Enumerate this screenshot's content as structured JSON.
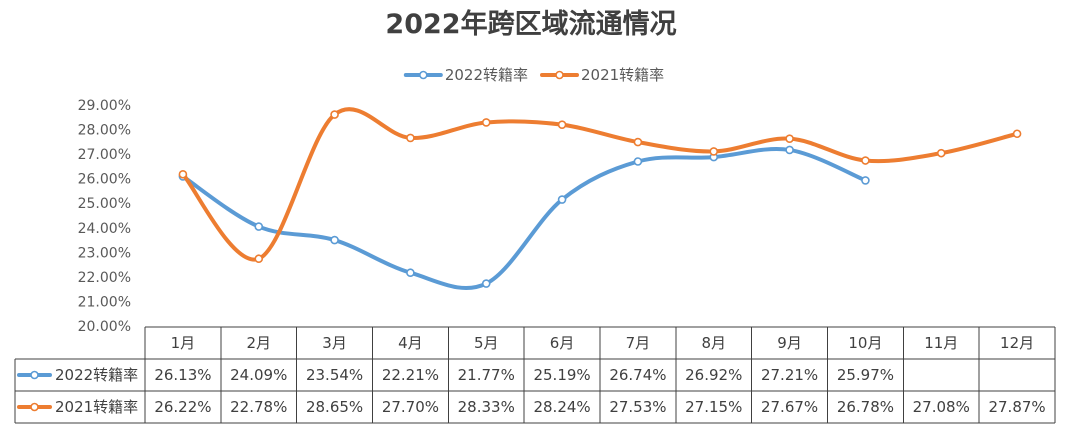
{
  "chart_data": {
    "type": "line",
    "title": "2022年跨区域流通情况",
    "smooth": true,
    "marker": "circle",
    "grid": false,
    "legend": "top",
    "data_table": "bottom",
    "categories": [
      "1月",
      "2月",
      "3月",
      "4月",
      "5月",
      "6月",
      "7月",
      "8月",
      "9月",
      "10月",
      "11月",
      "12月"
    ],
    "ylim": [
      20,
      29
    ],
    "y_ticks": [
      "20.00%",
      "21.00%",
      "22.00%",
      "23.00%",
      "24.00%",
      "25.00%",
      "26.00%",
      "27.00%",
      "28.00%",
      "29.00%"
    ],
    "series": [
      {
        "name": "2022转籍率",
        "color": "#5B9BD5",
        "values": [
          26.13,
          24.09,
          23.54,
          22.21,
          21.77,
          25.19,
          26.74,
          26.92,
          27.21,
          25.97,
          null,
          null
        ],
        "labels": [
          "26.13%",
          "24.09%",
          "23.54%",
          "22.21%",
          "21.77%",
          "25.19%",
          "26.74%",
          "26.92%",
          "27.21%",
          "25.97%",
          "",
          ""
        ]
      },
      {
        "name": "2021转籍率",
        "color": "#ED7D31",
        "values": [
          26.22,
          22.78,
          28.65,
          27.7,
          28.33,
          28.24,
          27.53,
          27.15,
          27.67,
          26.78,
          27.08,
          27.87
        ],
        "labels": [
          "26.22%",
          "22.78%",
          "28.65%",
          "27.70%",
          "28.33%",
          "28.24%",
          "27.53%",
          "27.15%",
          "27.67%",
          "26.78%",
          "27.08%",
          "27.87%"
        ]
      }
    ]
  }
}
